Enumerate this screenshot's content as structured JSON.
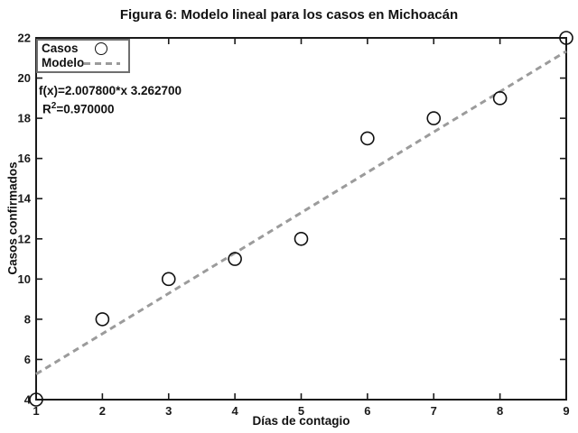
{
  "figure": {
    "title": "Figura 6: Modelo lineal para los casos en Michoacán"
  },
  "legend": {
    "position": "top-left",
    "items": [
      {
        "label": "Casos",
        "marker": "circle"
      },
      {
        "label": "Modelo",
        "marker": "dashed-line"
      }
    ]
  },
  "annotation": {
    "fx_line": "f(x)=2.007800*x 3.262700",
    "r2_base": "R",
    "r2_sup": "2",
    "r2_rest": "=0.970000"
  },
  "chart_data": {
    "type": "scatter",
    "title": "Figura 6: Modelo lineal para los casos en Michoacán",
    "xlabel": "Días de contagio",
    "ylabel": "Casos confirmados",
    "xlim": [
      1,
      9
    ],
    "ylim": [
      4,
      22
    ],
    "x_ticks": [
      1,
      2,
      3,
      4,
      5,
      6,
      7,
      8,
      9
    ],
    "y_ticks": [
      4,
      6,
      8,
      10,
      12,
      14,
      16,
      18,
      20,
      22
    ],
    "grid": false,
    "legend_position": "top-left",
    "series": [
      {
        "name": "Casos",
        "type": "scatter",
        "marker": "circle",
        "color": "#111111",
        "x": [
          1,
          2,
          3,
          4,
          5,
          6,
          7,
          8,
          9
        ],
        "y": [
          4,
          8,
          10,
          11,
          12,
          17,
          18,
          19,
          22
        ]
      },
      {
        "name": "Modelo",
        "type": "line",
        "style": "dashed",
        "color": "#9b9b9b",
        "equation": "f(x)=2.007800*x 3.262700",
        "slope": 2.0078,
        "intercept": 3.2627,
        "r_squared": 0.97,
        "x_range": [
          1,
          9
        ]
      }
    ],
    "colors": {
      "axis": "#1a1a1a",
      "model_line": "#9b9b9b",
      "marker_edge": "#111111",
      "background": "#ffffff"
    }
  }
}
